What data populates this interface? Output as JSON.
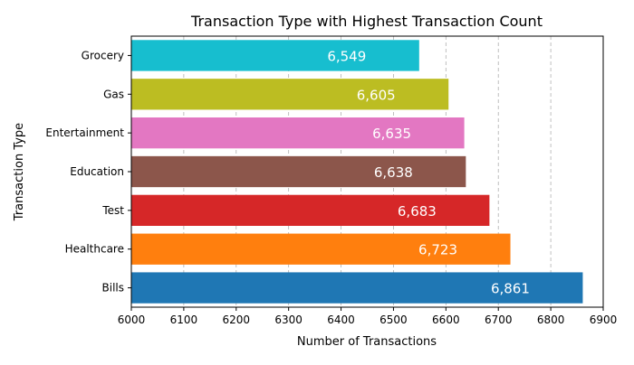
{
  "chart_data": {
    "type": "bar",
    "orientation": "horizontal",
    "title": "Transaction Type with Highest Transaction Count",
    "xlabel": "Number of Transactions",
    "ylabel": "Transaction Type",
    "xlim": [
      6000,
      6900
    ],
    "xticks": [
      6000,
      6100,
      6200,
      6300,
      6400,
      6500,
      6600,
      6700,
      6800,
      6900
    ],
    "grid": {
      "x": true,
      "style": "dashed"
    },
    "categories": [
      "Bills",
      "Healthcare",
      "Test",
      "Education",
      "Entertainment",
      "Gas",
      "Grocery"
    ],
    "values": [
      6861,
      6723,
      6683,
      6638,
      6635,
      6605,
      6549
    ],
    "labels": [
      "6,861",
      "6,723",
      "6,683",
      "6,638",
      "6,635",
      "6,605",
      "6,549"
    ],
    "colors": [
      "#1f77b4",
      "#ff7f0e",
      "#d62728",
      "#8c564b",
      "#e377c2",
      "#bcbd22",
      "#17becf"
    ],
    "label_color": "#ffffff"
  }
}
